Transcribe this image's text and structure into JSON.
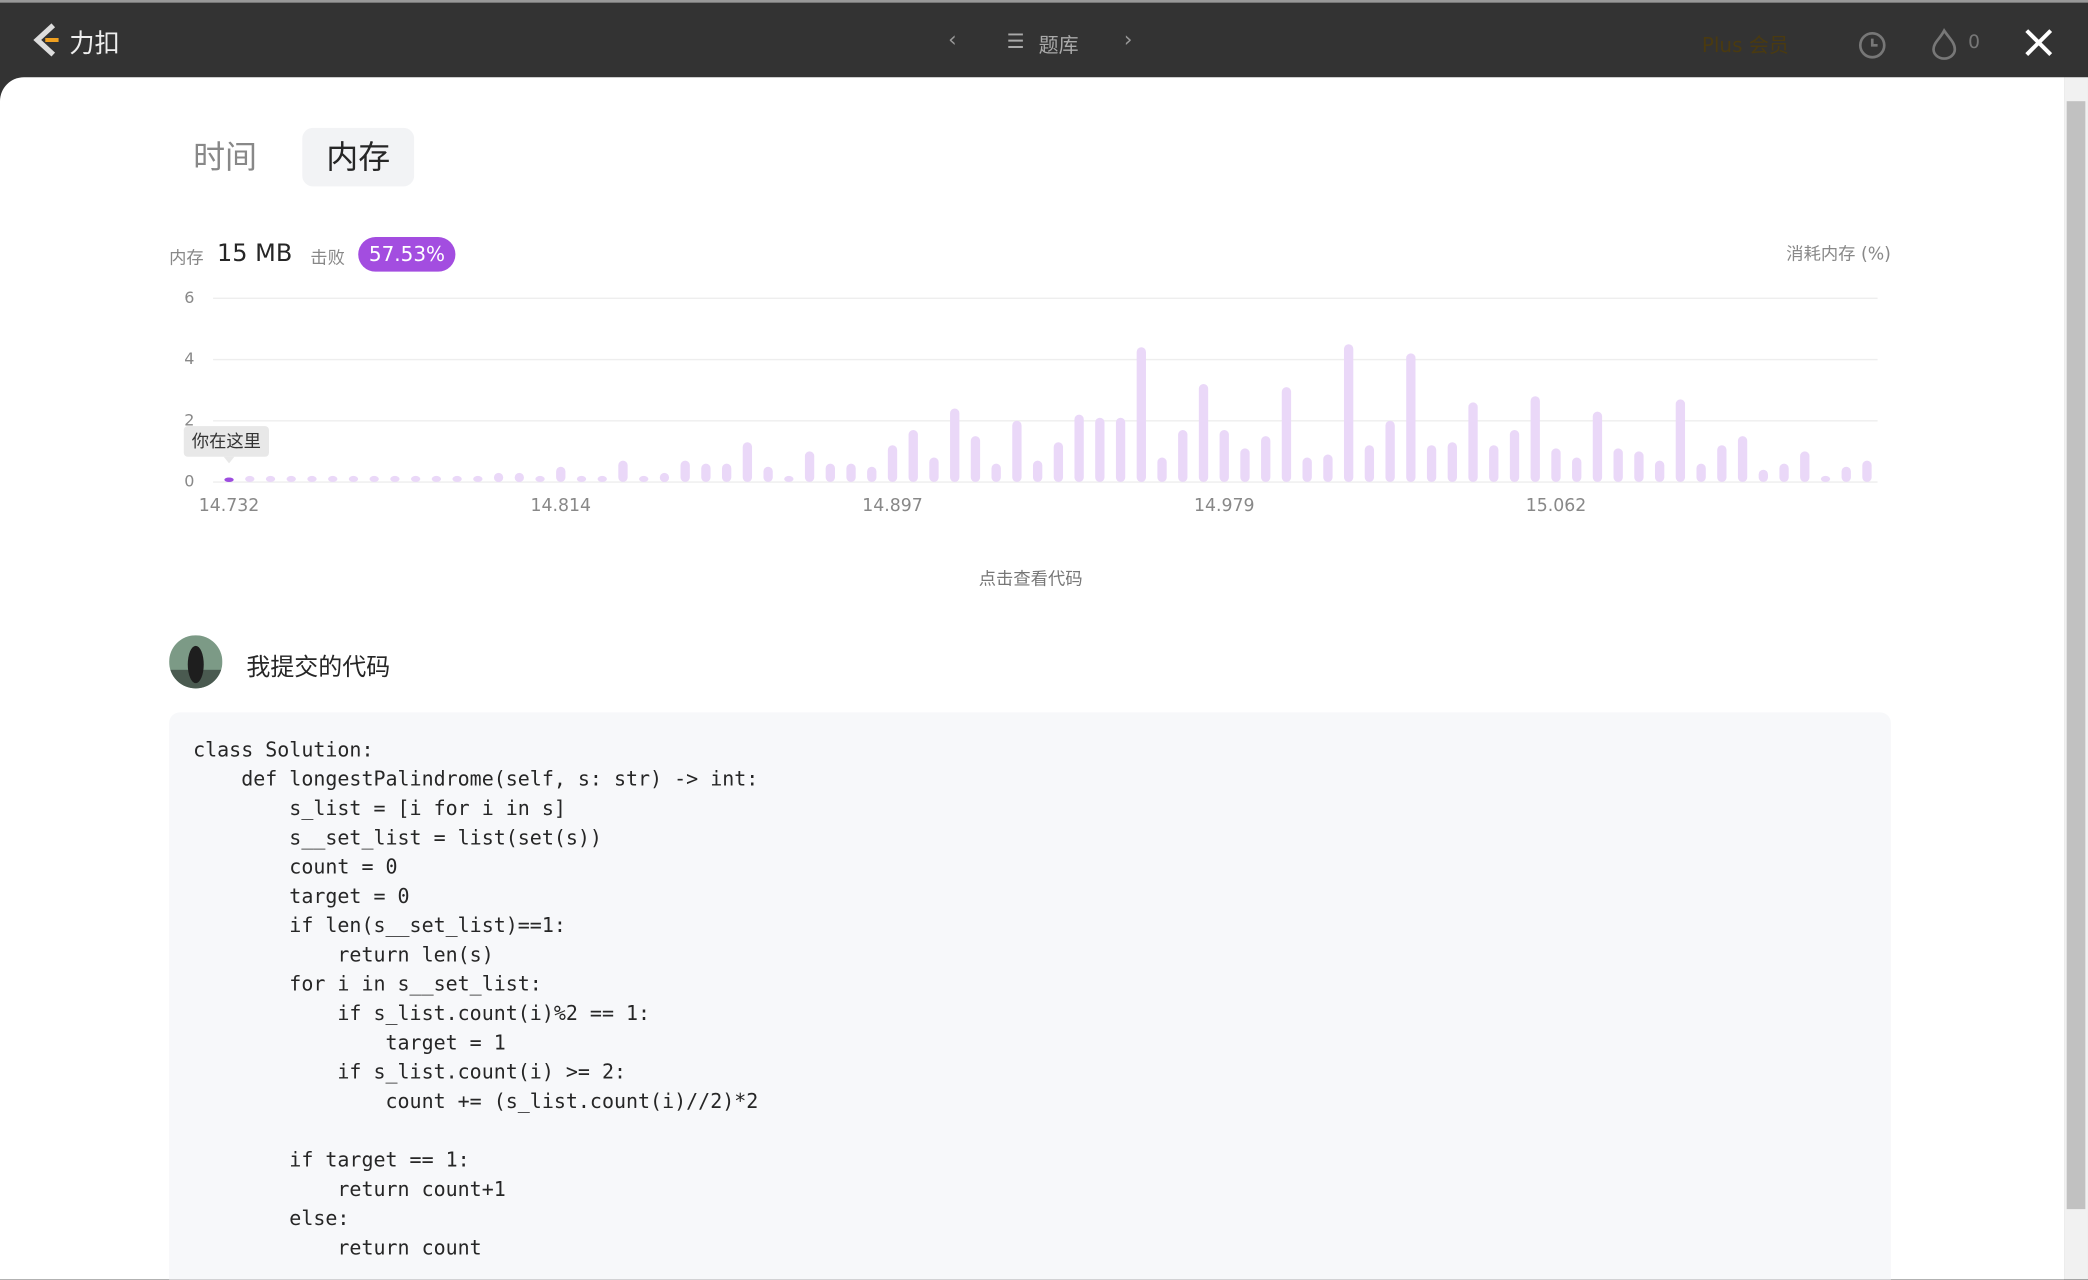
{
  "header": {
    "logo": "力扣",
    "nav": "题库",
    "plus": "Plus 会员",
    "streak": "0"
  },
  "tabs": [
    "时间",
    "内存"
  ],
  "stats": {
    "memory_label": "内存",
    "memory_value": "15 MB",
    "beat_label": "击败",
    "beat_value": "57.53%"
  },
  "chart_data": {
    "type": "bar",
    "y_label": "消耗内存 (%)",
    "marker_label": "你在这里",
    "categories": [
      "14.732",
      null,
      null,
      null,
      null,
      null,
      null,
      null,
      null,
      null,
      null,
      null,
      null,
      null,
      null,
      null,
      "14.814",
      null,
      null,
      null,
      null,
      null,
      null,
      null,
      null,
      null,
      null,
      null,
      null,
      null,
      null,
      null,
      "14.897",
      null,
      null,
      null,
      null,
      null,
      null,
      null,
      null,
      null,
      null,
      null,
      null,
      null,
      null,
      null,
      "14.979",
      null,
      null,
      null,
      null,
      null,
      null,
      null,
      null,
      null,
      null,
      null,
      null,
      null,
      null,
      null,
      "15.062",
      null,
      null,
      null,
      null,
      null,
      null,
      null,
      null,
      null,
      null,
      null,
      null,
      null,
      null,
      null
    ],
    "values": [
      0.15,
      0.2,
      0.2,
      0.2,
      0.2,
      0.2,
      0.2,
      0.2,
      0.2,
      0.2,
      0.2,
      0.2,
      0.2,
      0.3,
      0.3,
      0.2,
      0.5,
      0.2,
      0.2,
      0.7,
      0.2,
      0.3,
      0.7,
      0.6,
      0.6,
      1.3,
      0.5,
      0.2,
      1.0,
      0.6,
      0.6,
      0.5,
      1.2,
      1.7,
      0.8,
      2.4,
      1.5,
      0.6,
      2.0,
      0.7,
      1.3,
      2.2,
      2.1,
      2.1,
      4.4,
      0.8,
      1.7,
      3.2,
      1.7,
      1.1,
      1.5,
      3.1,
      0.8,
      0.9,
      4.5,
      1.2,
      2.0,
      4.2,
      1.2,
      1.3,
      2.6,
      1.2,
      1.7,
      2.8,
      1.1,
      0.8,
      2.3,
      1.1,
      1.0,
      0.7,
      2.7,
      0.6,
      1.2,
      1.5,
      0.4,
      0.6,
      1.0,
      0.2,
      0.5,
      0.7
    ],
    "color": "#ead8f8",
    "highlight_color": "#9d4ddf",
    "highlight_index": 0,
    "ylim": [
      0,
      6
    ],
    "yticks": [
      0,
      2,
      4,
      6
    ],
    "grid": true
  },
  "view_code": "点击查看代码",
  "submission_title": "我提交的代码",
  "code": "class Solution:\n    def longestPalindrome(self, s: str) -> int:\n        s_list = [i for i in s]\n        s__set_list = list(set(s))\n        count = 0\n        target = 0\n        if len(s__set_list)==1:\n            return len(s)\n        for i in s__set_list:\n            if s_list.count(i)%2 == 1:\n                target = 1\n            if s_list.count(i) >= 2:\n                count += (s_list.count(i)//2)*2\n\n        if target == 1:\n            return count+1\n        else:\n            return count"
}
